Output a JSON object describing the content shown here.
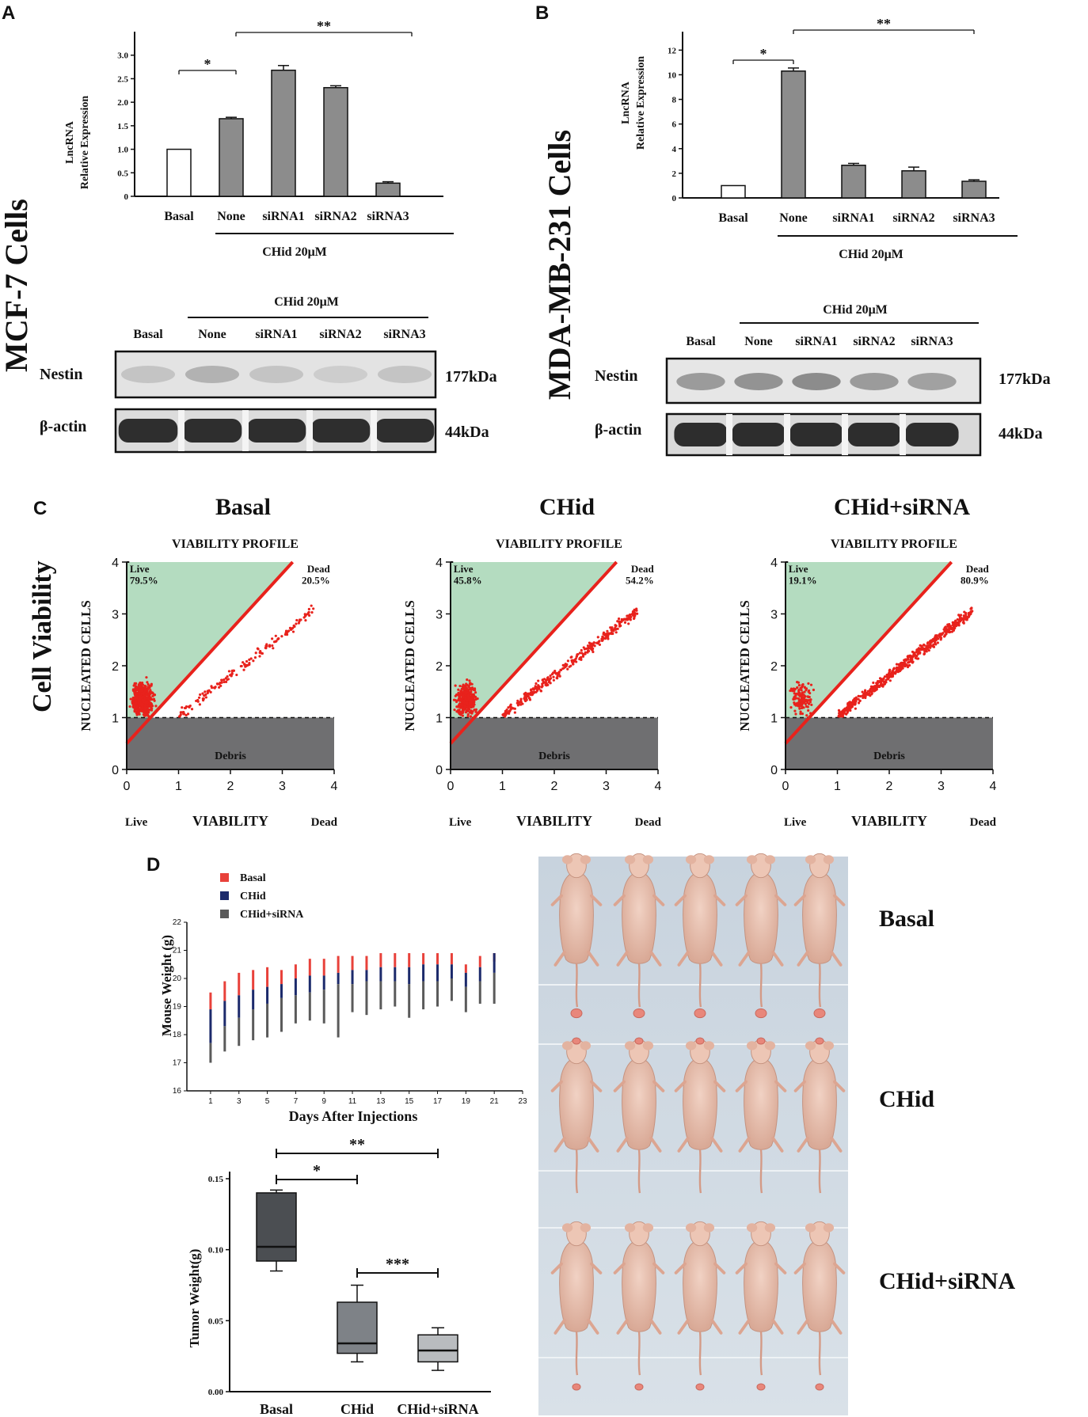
{
  "panels": {
    "A": {
      "letter": "A",
      "side_label": "MCF-7 Cells",
      "ylabel_line1": "LncRNA",
      "ylabel_line2": "Relative Expression",
      "treatment": "CHid 20μM",
      "blot_treatment": "CHid 20μM",
      "nestin": "Nestin",
      "nestin_kda": "177kDa",
      "actin": "β-actin",
      "actin_kda": "44kDa",
      "sig": [
        "*",
        "**"
      ]
    },
    "B": {
      "letter": "B",
      "side_label": "MDA-MB-231 Cells",
      "ylabel_line1": "LncRNA",
      "ylabel_line2": "Relative Expression",
      "treatment": "CHid 20μM",
      "blot_treatment": "CHid 20μM",
      "nestin": "Nestin",
      "nestin_kda": "177kDa",
      "actin": "β-actin",
      "actin_kda": "44kDa",
      "sig": [
        "*",
        "**"
      ]
    },
    "C": {
      "letter": "C",
      "side_label": "Cell Viability",
      "profile_title": "VIABILITY PROFILE",
      "ylabel": "NUCLEATED CELLS",
      "xlabel": "VIABILITY",
      "x_left": "Live",
      "x_right": "Dead",
      "debris": "Debris",
      "live_word": "Live",
      "dead_word": "Dead"
    },
    "D": {
      "letter": "D",
      "photo_rows": [
        "Basal",
        "CHid",
        "CHid+siRNA"
      ]
    }
  },
  "chart_data": [
    {
      "id": "A-bar",
      "type": "bar",
      "categories": [
        "Basal",
        "None",
        "siRNA1",
        "siRNA2",
        "siRNA3"
      ],
      "values": [
        1.0,
        1.65,
        2.68,
        2.31,
        0.28
      ],
      "errors": [
        0,
        0.03,
        0.1,
        0.04,
        0.03
      ],
      "ylim": [
        0,
        3.5
      ],
      "yticks": [
        "0",
        "0.5",
        "1.0",
        "1.5",
        "2.0",
        "2.5",
        "3.0"
      ],
      "ytick_values": [
        0,
        0.5,
        1.0,
        1.5,
        2.0,
        2.5,
        3.0
      ],
      "bar_colors": [
        "#ffffff",
        "#8c8c8c",
        "#8c8c8c",
        "#8c8c8c",
        "#8c8c8c"
      ],
      "blot_lanes": [
        "Basal",
        "None",
        "siRNA1",
        "siRNA2",
        "siRNA3"
      ]
    },
    {
      "id": "B-bar",
      "type": "bar",
      "categories": [
        "Basal",
        "None",
        "siRNA1",
        "siRNA2",
        "siRNA3"
      ],
      "values": [
        1.0,
        10.3,
        2.65,
        2.2,
        1.35
      ],
      "errors": [
        0,
        0.25,
        0.15,
        0.3,
        0.12
      ],
      "ylim": [
        0,
        13.5
      ],
      "yticks": [
        "0",
        "2",
        "4",
        "6",
        "8",
        "10",
        "12"
      ],
      "ytick_values": [
        0,
        2,
        4,
        6,
        8,
        10,
        12
      ],
      "bar_colors": [
        "#ffffff",
        "#8c8c8c",
        "#8c8c8c",
        "#8c8c8c",
        "#8c8c8c"
      ],
      "blot_lanes": [
        "Basal",
        "None",
        "siRNA1",
        "siRNA2",
        "siRNA3"
      ]
    },
    {
      "id": "C-scatter",
      "type": "scatter",
      "xlim": [
        0,
        4
      ],
      "ylim": [
        0,
        4
      ],
      "ticks": [
        "0",
        "1",
        "2",
        "3",
        "4"
      ],
      "tick_values": [
        0,
        1,
        2,
        3,
        4
      ],
      "debris_threshold": 1,
      "diagonal": [
        [
          0,
          0.5
        ],
        [
          3.2,
          4
        ]
      ],
      "panels": [
        {
          "title": "Basal",
          "live_pct": "79.5%",
          "dead_pct": "20.5%",
          "live_frac": 0.795
        },
        {
          "title": "CHid",
          "live_pct": "45.8%",
          "dead_pct": "54.2%",
          "live_frac": 0.458
        },
        {
          "title": "CHid+siRNA",
          "live_pct": "19.1%",
          "dead_pct": "80.9%",
          "live_frac": 0.191
        }
      ]
    },
    {
      "id": "D-weight",
      "type": "bar",
      "ylabel": "Mouse Weight (g)",
      "xlabel": "Days After Injections",
      "ylim": [
        16,
        22
      ],
      "xlim": [
        0,
        23
      ],
      "yticks": [
        "16",
        "17",
        "18",
        "19",
        "20",
        "21",
        "22"
      ],
      "ytick_values": [
        16,
        17,
        18,
        19,
        20,
        21,
        22
      ],
      "xticks": [
        "1",
        "3",
        "5",
        "7",
        "9",
        "11",
        "13",
        "15",
        "17",
        "19",
        "21",
        "23"
      ],
      "xtick_values": [
        1,
        3,
        5,
        7,
        9,
        11,
        13,
        15,
        17,
        19,
        21,
        23
      ],
      "legend": [
        {
          "name": "Basal",
          "color": "#e8413a"
        },
        {
          "name": "CHid",
          "color": "#1c2a6b"
        },
        {
          "name": "CHid+siRNA",
          "color": "#5a5a5a"
        }
      ],
      "days": [
        1,
        2,
        3,
        4,
        5,
        6,
        7,
        8,
        9,
        10,
        11,
        12,
        13,
        14,
        15,
        16,
        17,
        18,
        19,
        20,
        21
      ],
      "series": [
        {
          "name": "Basal",
          "low": [
            18.9,
            19.2,
            19.4,
            19.6,
            19.7,
            19.8,
            20.0,
            20.1,
            20.1,
            20.2,
            20.3,
            20.3,
            20.4,
            20.4,
            20.4,
            20.5,
            20.5,
            20.5,
            20.2,
            20.4,
            20.6
          ],
          "high": [
            19.5,
            19.9,
            20.2,
            20.3,
            20.4,
            20.3,
            20.5,
            20.7,
            20.7,
            20.8,
            20.8,
            20.8,
            20.9,
            20.9,
            20.9,
            20.9,
            20.9,
            20.9,
            20.5,
            20.8,
            20.9
          ]
        },
        {
          "name": "CHid",
          "low": [
            17.7,
            18.3,
            18.6,
            18.9,
            19.1,
            19.3,
            19.4,
            19.5,
            19.6,
            19.8,
            19.8,
            19.9,
            19.9,
            19.9,
            19.8,
            19.9,
            19.9,
            20.0,
            19.7,
            19.9,
            20.2
          ],
          "high": [
            18.9,
            19.2,
            19.4,
            19.6,
            19.7,
            19.8,
            20.0,
            20.1,
            20.1,
            20.2,
            20.3,
            20.3,
            20.4,
            20.4,
            20.4,
            20.5,
            20.5,
            20.5,
            20.2,
            20.4,
            20.9
          ]
        },
        {
          "name": "CHid+siRNA",
          "low": [
            17.0,
            17.4,
            17.6,
            17.8,
            17.9,
            18.1,
            18.4,
            18.5,
            18.4,
            17.9,
            18.8,
            18.7,
            18.9,
            19.0,
            18.6,
            18.9,
            19.0,
            19.2,
            18.8,
            19.1,
            19.1
          ],
          "high": [
            17.7,
            18.3,
            18.6,
            18.9,
            19.1,
            19.3,
            19.4,
            19.5,
            19.6,
            19.8,
            19.8,
            19.9,
            19.9,
            19.9,
            19.8,
            19.9,
            19.9,
            20.0,
            19.7,
            19.9,
            20.2
          ]
        }
      ]
    },
    {
      "id": "D-tumor",
      "type": "box",
      "ylabel": "Tumor Weight(g)",
      "ylim": [
        0,
        0.155
      ],
      "yticks": [
        "0.00",
        "0.05",
        "0.10",
        "0.15"
      ],
      "ytick_values": [
        0,
        0.05,
        0.1,
        0.15
      ],
      "categories": [
        "Basal",
        "CHid",
        "CHid+siRNA"
      ],
      "colors": [
        "#4b4e52",
        "#7e8287",
        "#b9bcbf"
      ],
      "boxes": [
        {
          "min": 0.085,
          "q1": 0.092,
          "median": 0.102,
          "q3": 0.14,
          "max": 0.142
        },
        {
          "min": 0.021,
          "q1": 0.027,
          "median": 0.034,
          "q3": 0.063,
          "max": 0.075
        },
        {
          "min": 0.015,
          "q1": 0.021,
          "median": 0.029,
          "q3": 0.04,
          "max": 0.045
        }
      ],
      "sig": [
        "**",
        "*",
        "***"
      ]
    }
  ]
}
